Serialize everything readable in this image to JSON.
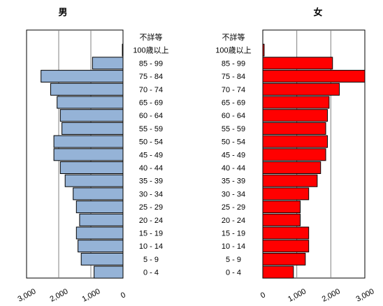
{
  "chart_data": [
    {
      "type": "bar",
      "orientation": "horizontal",
      "title": "男",
      "color": "#95B3D7",
      "direction": "right-to-left",
      "categories": [
        "不詳等",
        "100歳以上",
        "85 - 99",
        "75 - 84",
        "70 - 74",
        "65 - 69",
        "60 - 64",
        "55 - 59",
        "50 - 54",
        "45 - 49",
        "40 - 44",
        "35 - 39",
        "30 - 34",
        "25 - 29",
        "20 - 24",
        "15 - 19",
        "10 - 14",
        "5 - 9",
        "0 - 4"
      ],
      "values": [
        0,
        20,
        950,
        2550,
        2250,
        2050,
        1950,
        1900,
        2150,
        2150,
        1950,
        1800,
        1550,
        1450,
        1350,
        1450,
        1400,
        1300,
        900
      ],
      "xlim": [
        0,
        3000
      ],
      "xticks": [
        "3,000",
        "2,000",
        "1,000",
        "0"
      ],
      "grid": true
    },
    {
      "type": "bar",
      "orientation": "horizontal",
      "title": "女",
      "color": "#FF0000",
      "direction": "left-to-right",
      "categories": [
        "不詳等",
        "100歳以上",
        "85 - 99",
        "75 - 84",
        "70 - 74",
        "65 - 69",
        "60 - 64",
        "55 - 59",
        "50 - 54",
        "45 - 49",
        "40 - 44",
        "35 - 39",
        "30 - 34",
        "25 - 29",
        "20 - 24",
        "15 - 19",
        "10 - 14",
        "5 - 9",
        "0 - 4"
      ],
      "values": [
        0,
        40,
        2050,
        3000,
        2250,
        1950,
        1900,
        1850,
        1900,
        1850,
        1700,
        1600,
        1350,
        1100,
        1100,
        1350,
        1350,
        1250,
        900
      ],
      "xlim": [
        0,
        3000
      ],
      "xticks": [
        "0",
        "1,000",
        "2,000",
        "3,000"
      ],
      "grid": true
    }
  ]
}
